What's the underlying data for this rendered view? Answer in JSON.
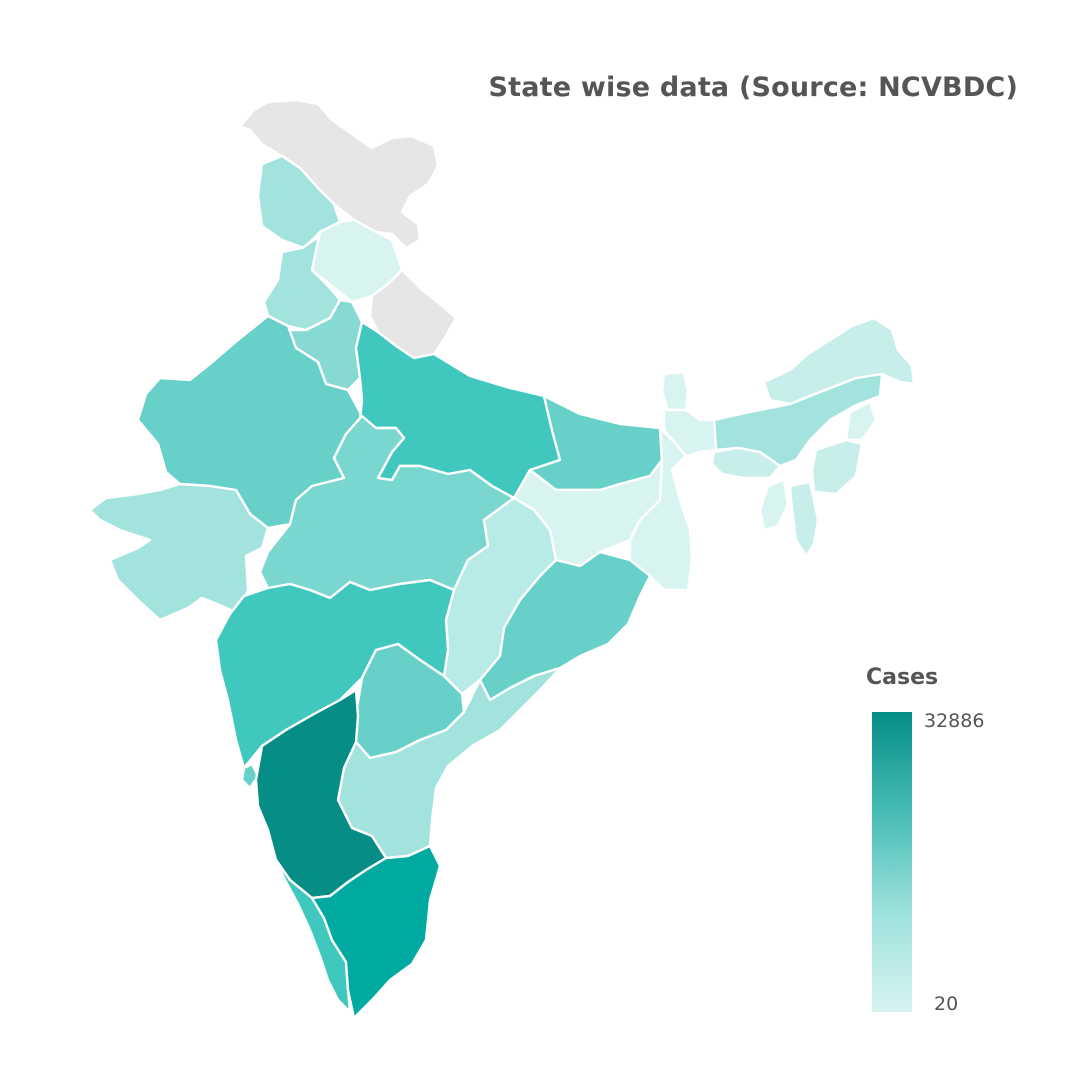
{
  "title": "State wise data (Source: NCVBDC)",
  "legend": {
    "title": "Cases",
    "max_label": "32886",
    "min_label": "20",
    "color_max": "#058d86",
    "color_min": "#d7f4f1"
  },
  "colors": {
    "no_data": "#e6e6e6",
    "border": "#ffffff",
    "text": "#555555"
  }
}
